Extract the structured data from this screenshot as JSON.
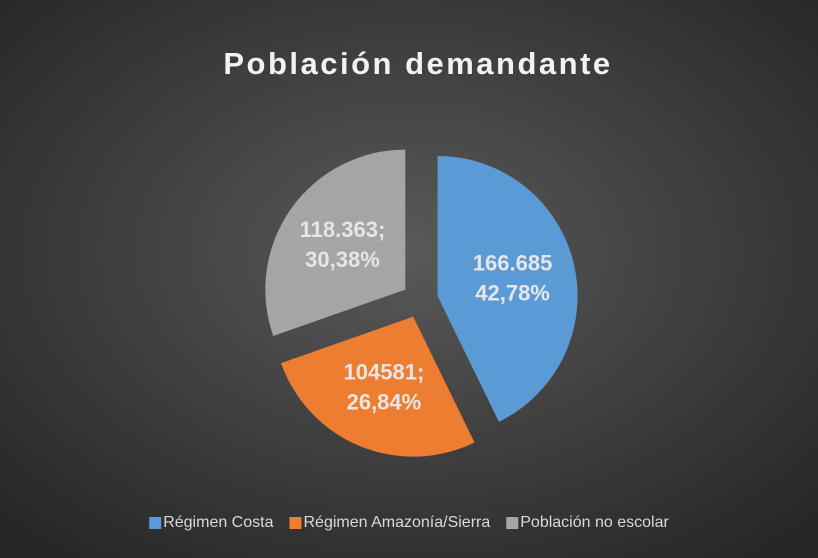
{
  "chart_data": {
    "type": "pie",
    "title": "Población demandante",
    "categories": [
      "Régimen Costa",
      "Régimen Amazonía/Sierra",
      "Población no escolar"
    ],
    "values": [
      166685,
      104581,
      118363
    ],
    "value_labels": [
      "166.685",
      "104581;",
      "118.363;"
    ],
    "percentages": [
      42.78,
      26.84,
      30.38
    ],
    "percentage_labels": [
      "42,78%",
      "26,84%",
      "30,38%"
    ],
    "colors": [
      "#5b9bd5",
      "#ed7d31",
      "#a5a5a5"
    ],
    "legend": "bottom"
  }
}
